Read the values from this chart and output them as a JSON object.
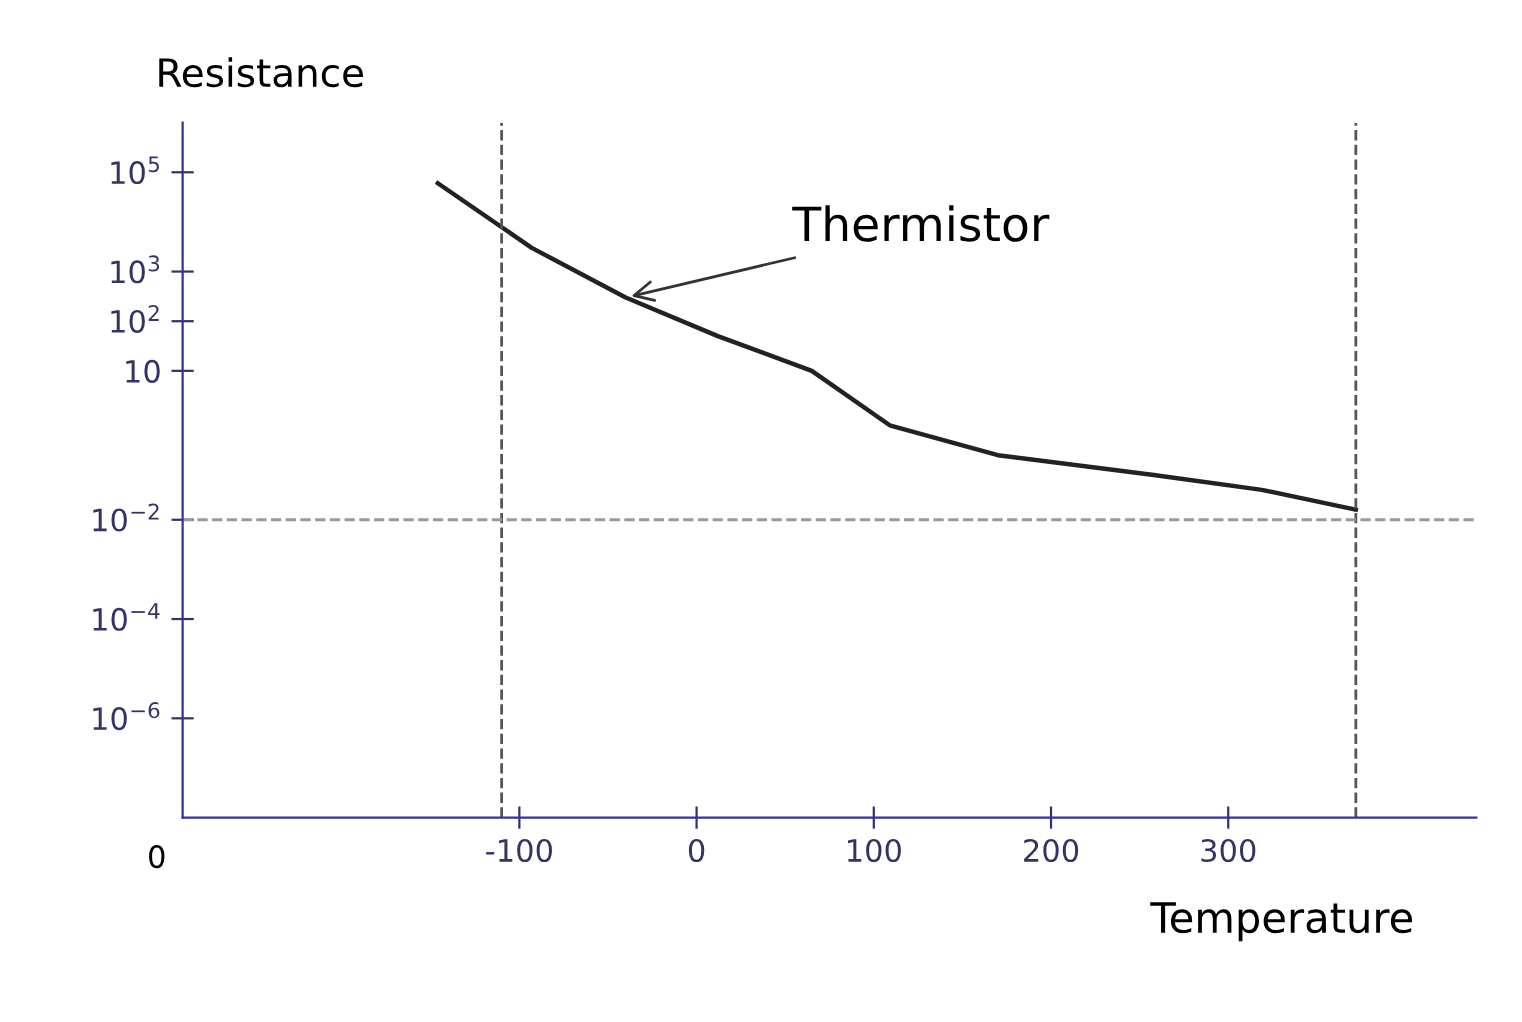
{
  "chart_data": {
    "type": "line",
    "xlabel": "Temperature",
    "ylabel": "Resistance",
    "log": "y",
    "x": [
      -146,
      -93,
      -40,
      12,
      65,
      109,
      170,
      258,
      319,
      372
    ],
    "series": [
      {
        "color": "#222222",
        "values": [
          60000,
          3000,
          300,
          50,
          10,
          0.8,
          0.2,
          0.08,
          0.04,
          0.016
        ]
      }
    ],
    "xlim": [
      -290,
      440
    ],
    "xticks": [
      -100,
      0,
      100,
      200,
      300
    ],
    "ylim": [
      1e-08,
      1000000.0
    ],
    "yticks": [
      {
        "value": 1e-06,
        "label": "10$^{−6}$"
      },
      {
        "value": 0.0001,
        "label": "10$^{−4}$"
      },
      {
        "value": 0.01,
        "label": "10$^{−2}$"
      },
      {
        "value": 10,
        "label": "10"
      },
      {
        "value": 100,
        "label": "10$^{2}$"
      },
      {
        "value": 1000,
        "label": "10$^{3}$"
      },
      {
        "value": 100000,
        "label": "10$^{5}$"
      }
    ],
    "ref_lines": [
      {
        "axis": "x",
        "value": -110,
        "line_style": "dashed",
        "color": "#555555"
      },
      {
        "axis": "x",
        "value": 372,
        "line_style": "dashed",
        "color": "#555555"
      },
      {
        "axis": "y",
        "value": 0.01,
        "line_style": "dashed",
        "color": "#999999"
      }
    ],
    "annotations": [
      {
        "text": "Thermistor",
        "x": -40,
        "y": 300
      },
      "0"
    ],
    "grid": false,
    "legend": false,
    "marker": "none",
    "line_style": "solid"
  }
}
